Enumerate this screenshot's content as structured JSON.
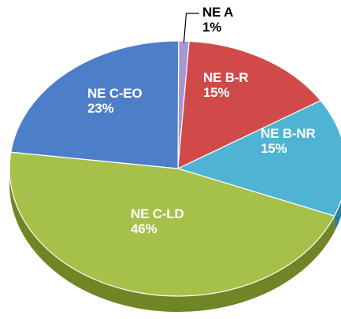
{
  "chart_data": {
    "type": "pie",
    "title": "",
    "slices": [
      {
        "label": "NE A",
        "value": 1,
        "display": "1%",
        "color": "#a895d6",
        "side": "#7b6aa6",
        "label_color": "#000000"
      },
      {
        "label": "NE B-R",
        "value": 15,
        "display": "15%",
        "color": "#cf4a48",
        "side": "#8f2d2c",
        "label_color": "#ffffff"
      },
      {
        "label": "NE B-NR",
        "value": 15,
        "display": "15%",
        "color": "#4fb4d3",
        "side": "#2f7f97",
        "label_color": "#ffffff"
      },
      {
        "label": "NE C-LD",
        "value": 46,
        "display": "46%",
        "color": "#a5c14a",
        "side": "#6f8526",
        "label_color": "#ffffff"
      },
      {
        "label": "NE C-EO",
        "value": 23,
        "display": "23%",
        "color": "#4d7ec8",
        "side": "#2f5691",
        "label_color": "#ffffff"
      }
    ],
    "legend": "none",
    "style": "3d-tilted"
  }
}
